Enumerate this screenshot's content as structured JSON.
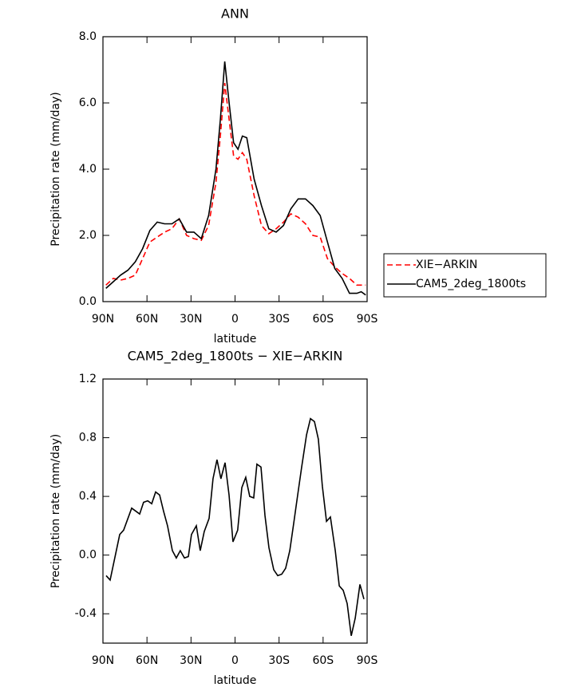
{
  "chart_data": [
    {
      "type": "line",
      "title": "ANN",
      "x_label": "latitude",
      "y_label": "Precipitation rate (mm/day)",
      "x": [
        88,
        83,
        78,
        73,
        68,
        63,
        58,
        53,
        48,
        43,
        38,
        33,
        28,
        23,
        18,
        13,
        10,
        7,
        4,
        1,
        -2,
        -5,
        -8,
        -13,
        -18,
        -23,
        -28,
        -33,
        -38,
        -43,
        -48,
        -53,
        -58,
        -63,
        -68,
        -73,
        -78,
        -83,
        -86,
        -89
      ],
      "series": [
        {
          "name": "XIE−ARKIN",
          "color": "#ff0000",
          "dashed": true,
          "values": [
            0.5,
            0.7,
            0.65,
            0.7,
            0.8,
            1.3,
            1.8,
            1.95,
            2.1,
            2.2,
            2.5,
            2.0,
            1.9,
            1.85,
            2.3,
            3.6,
            5.0,
            6.6,
            5.5,
            4.4,
            4.3,
            4.5,
            4.3,
            3.2,
            2.3,
            2.05,
            2.2,
            2.4,
            2.65,
            2.55,
            2.35,
            2.0,
            1.95,
            1.3,
            1.05,
            0.85,
            0.7,
            0.5,
            0.5,
            0.5
          ]
        },
        {
          "name": "CAM5_2deg_1800ts",
          "color": "#000000",
          "dashed": false,
          "values": [
            0.4,
            0.6,
            0.8,
            0.95,
            1.2,
            1.6,
            2.15,
            2.4,
            2.35,
            2.35,
            2.5,
            2.1,
            2.1,
            1.9,
            2.6,
            4.0,
            5.5,
            7.25,
            6.0,
            4.8,
            4.6,
            5.0,
            4.95,
            3.7,
            2.9,
            2.2,
            2.1,
            2.3,
            2.8,
            3.1,
            3.1,
            2.9,
            2.6,
            1.8,
            1.0,
            0.7,
            0.25,
            0.25,
            0.3,
            0.2
          ]
        }
      ],
      "xlim": [
        90,
        -90
      ],
      "xticks": [
        {
          "value": 90,
          "label": "90N"
        },
        {
          "value": 60,
          "label": "60N"
        },
        {
          "value": 30,
          "label": "30N"
        },
        0,
        {
          "value": -30,
          "label": "30S"
        },
        {
          "value": -60,
          "label": "60S"
        },
        {
          "value": -90,
          "label": "90S"
        }
      ],
      "ylim": [
        0,
        8
      ],
      "yticks": [
        {
          "value": 0,
          "label": "0.0"
        },
        {
          "value": 2,
          "label": "2.0"
        },
        {
          "value": 4,
          "label": "4.0"
        },
        {
          "value": 6,
          "label": "6.0"
        },
        {
          "value": 8,
          "label": "8.0"
        }
      ],
      "grid": false,
      "legend": "outside-right"
    },
    {
      "type": "line",
      "title": "CAM5_2deg_1800ts − XIE−ARKIN",
      "x_label": "latitude",
      "y_label": "Precipitation rate (mm/day)",
      "x": [
        87.8,
        85.1,
        78.6,
        75.9,
        70.4,
        65.0,
        62.3,
        59.5,
        56.8,
        54.1,
        51.4,
        48.7,
        46.0,
        42.7,
        40.0,
        37.3,
        34.5,
        31.8,
        29.7,
        26.4,
        23.7,
        21.0,
        17.7,
        15.0,
        12.3,
        9.6,
        6.8,
        4.1,
        1.4,
        -1.8,
        -4.6,
        -7.3,
        -10.0,
        -12.7,
        -14.9,
        -17.7,
        -20.4,
        -23.1,
        -26.4,
        -29.1,
        -31.8,
        -34.5,
        -37.3,
        -40.0,
        -42.7,
        -45.4,
        -48.7,
        -51.4,
        -54.1,
        -56.8,
        -59.5,
        -62.3,
        -65.0,
        -68.3,
        -71.0,
        -73.7,
        -76.4,
        -79.2,
        -81.9,
        -85.1,
        -87.8
      ],
      "values": [
        -0.14,
        -0.17,
        0.14,
        0.17,
        0.32,
        0.28,
        0.36,
        0.37,
        0.35,
        0.43,
        0.41,
        0.3,
        0.2,
        0.03,
        -0.02,
        0.03,
        -0.02,
        -0.01,
        0.14,
        0.2,
        0.03,
        0.16,
        0.25,
        0.52,
        0.65,
        0.52,
        0.63,
        0.41,
        0.09,
        0.17,
        0.46,
        0.53,
        0.4,
        0.39,
        0.62,
        0.6,
        0.27,
        0.05,
        -0.1,
        -0.14,
        -0.13,
        -0.09,
        0.03,
        0.22,
        0.41,
        0.6,
        0.82,
        0.93,
        0.91,
        0.79,
        0.47,
        0.23,
        0.26,
        0.03,
        -0.21,
        -0.24,
        -0.33,
        -0.55,
        -0.43,
        -0.2,
        -0.3
      ],
      "color": "#000000",
      "xlim": [
        90,
        -90
      ],
      "xticks": [
        {
          "value": 90,
          "label": "90N"
        },
        {
          "value": 60,
          "label": "60N"
        },
        {
          "value": 30,
          "label": "30N"
        },
        0,
        {
          "value": -30,
          "label": "30S"
        },
        {
          "value": -60,
          "label": "60S"
        },
        {
          "value": -90,
          "label": "90S"
        }
      ],
      "ylim": [
        -0.6,
        1.2
      ],
      "yticks": [
        -0.4,
        {
          "value": 0,
          "label": "0.0"
        },
        0.4,
        0.8,
        1.2
      ],
      "grid": false
    }
  ]
}
